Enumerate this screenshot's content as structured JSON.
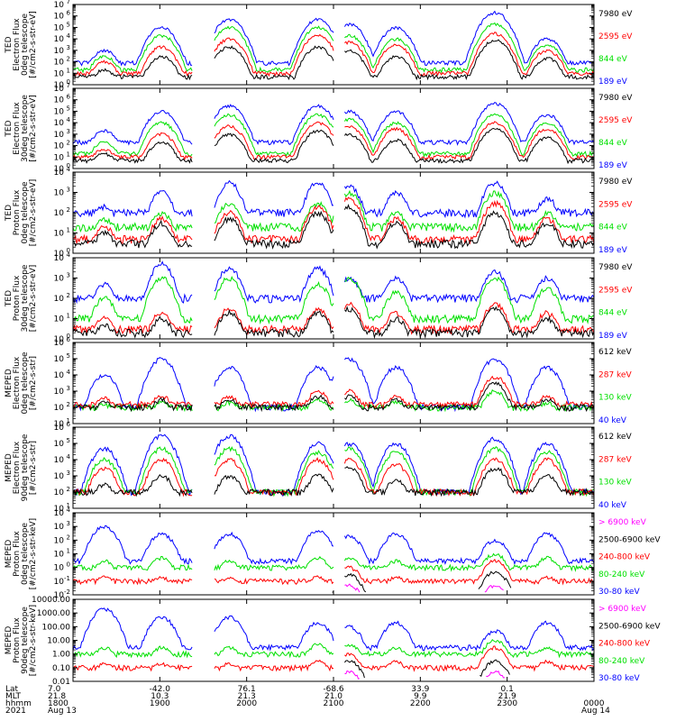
{
  "colors": {
    "black": "#000000",
    "red": "#ff0000",
    "green": "#00e000",
    "blue": "#0000ff",
    "magenta": "#ff00ff"
  },
  "chart_data": [
    {
      "type": "line",
      "ylabel": [
        "TED",
        "Electron Flux",
        "0deg telescope",
        "[#/cm2-s-str-eV]"
      ],
      "log_scale": true,
      "ylim": [
        1,
        10000000
      ],
      "yticks": [
        {
          "label": "10",
          "sup": "0"
        },
        {
          "label": "10",
          "sup": "1"
        },
        {
          "label": "10",
          "sup": "2"
        },
        {
          "label": "10",
          "sup": "3"
        },
        {
          "label": "10",
          "sup": "4"
        },
        {
          "label": "10",
          "sup": "5"
        },
        {
          "label": "10",
          "sup": "6"
        },
        {
          "label": "10",
          "sup": "7"
        }
      ],
      "series": [
        {
          "name": "7980 eV",
          "color": "#000000",
          "base": 5,
          "peaks": [
            20,
            300,
            2000,
            2000,
            1000,
            300,
            8000,
            200
          ]
        },
        {
          "name": "2595 eV",
          "color": "#ff0000",
          "base": 10,
          "peaks": [
            100,
            2000,
            10000,
            20000,
            5000,
            3000,
            30000,
            1000
          ]
        },
        {
          "name": "844 eV",
          "color": "#00e000",
          "base": 20,
          "peaks": [
            300,
            20000,
            100000,
            100000,
            20000,
            10000,
            200000,
            3000
          ]
        },
        {
          "name": "189 eV",
          "color": "#0000ff",
          "base": 80,
          "peaks": [
            1000,
            100000,
            500000,
            500000,
            200000,
            100000,
            2000000,
            10000
          ]
        }
      ]
    },
    {
      "type": "line",
      "ylabel": [
        "TED",
        "Electron Flux",
        "30deg telescope",
        "[#/cm2-s-str-eV]"
      ],
      "log_scale": true,
      "ylim": [
        1,
        10000000
      ],
      "yticks": [
        {
          "label": "10",
          "sup": "0"
        },
        {
          "label": "10",
          "sup": "1"
        },
        {
          "label": "10",
          "sup": "2"
        },
        {
          "label": "10",
          "sup": "3"
        },
        {
          "label": "10",
          "sup": "4"
        },
        {
          "label": "10",
          "sup": "5"
        },
        {
          "label": "10",
          "sup": "6"
        },
        {
          "label": "10",
          "sup": "7"
        }
      ],
      "series": [
        {
          "name": "7980 eV",
          "color": "#000000",
          "base": 5,
          "peaks": [
            20,
            200,
            1000,
            2000,
            1000,
            300,
            3000,
            500
          ]
        },
        {
          "name": "2595 eV",
          "color": "#ff0000",
          "base": 10,
          "peaks": [
            50,
            1000,
            5000,
            10000,
            5000,
            3000,
            10000,
            3000
          ]
        },
        {
          "name": "844 eV",
          "color": "#00e000",
          "base": 20,
          "peaks": [
            200,
            10000,
            50000,
            50000,
            20000,
            10000,
            50000,
            10000
          ]
        },
        {
          "name": "189 eV",
          "color": "#0000ff",
          "base": 200,
          "peaks": [
            2000,
            100000,
            300000,
            300000,
            100000,
            100000,
            500000,
            50000
          ]
        }
      ]
    },
    {
      "type": "line",
      "ylabel": [
        "TED",
        "Proton Flux",
        "0deg telescope",
        "[#/cm2-s-str-eV]"
      ],
      "log_scale": true,
      "ylim": [
        1,
        10000
      ],
      "yticks": [
        {
          "label": "10",
          "sup": "0"
        },
        {
          "label": "10",
          "sup": "1"
        },
        {
          "label": "10",
          "sup": "2"
        },
        {
          "label": "10",
          "sup": "3"
        },
        {
          "label": "10",
          "sup": "4"
        }
      ],
      "series": [
        {
          "name": "7980 eV",
          "color": "#000000",
          "base": 3,
          "peaks": [
            10,
            30,
            50,
            100,
            200,
            30,
            100,
            30
          ]
        },
        {
          "name": "2595 eV",
          "color": "#ff0000",
          "base": 5,
          "peaks": [
            20,
            50,
            100,
            200,
            500,
            50,
            300,
            50
          ]
        },
        {
          "name": "844 eV",
          "color": "#00e000",
          "base": 20,
          "peaks": [
            50,
            100,
            300,
            300,
            1000,
            100,
            1000,
            100
          ]
        },
        {
          "name": "189 eV",
          "color": "#0000ff",
          "base": 100,
          "peaks": [
            200,
            1000,
            3000,
            3000,
            2000,
            1000,
            3000,
            500
          ]
        }
      ]
    },
    {
      "type": "line",
      "ylabel": [
        "TED",
        "Proton Flux",
        "30deg telescope",
        "[#/cm2-s-str-eV]"
      ],
      "log_scale": true,
      "ylim": [
        1,
        10000
      ],
      "yticks": [
        {
          "label": "10",
          "sup": "0"
        },
        {
          "label": "10",
          "sup": "1"
        },
        {
          "label": "10",
          "sup": "2"
        },
        {
          "label": "10",
          "sup": "3"
        },
        {
          "label": "10",
          "sup": "4"
        }
      ],
      "series": [
        {
          "name": "7980 eV",
          "color": "#000000",
          "base": 2,
          "peaks": [
            5,
            10,
            20,
            20,
            30,
            10,
            30,
            10
          ]
        },
        {
          "name": "2595 eV",
          "color": "#ff0000",
          "base": 3,
          "peaks": [
            10,
            20,
            30,
            30,
            50,
            20,
            50,
            20
          ]
        },
        {
          "name": "844 eV",
          "color": "#00e000",
          "base": 10,
          "peaks": [
            100,
            1000,
            1000,
            500,
            1000,
            200,
            1000,
            300
          ]
        },
        {
          "name": "189 eV",
          "color": "#0000ff",
          "base": 100,
          "peaks": [
            500,
            5000,
            3000,
            3000,
            1000,
            1000,
            2000,
            1000
          ]
        }
      ]
    },
    {
      "type": "line",
      "ylabel": [
        "MEPED",
        "Electron Flux",
        "0deg telescope",
        "[#/cm2-s-str]"
      ],
      "log_scale": true,
      "ylim": [
        10,
        1000000
      ],
      "yticks": [
        {
          "label": "10",
          "sup": "1"
        },
        {
          "label": "10",
          "sup": "2"
        },
        {
          "label": "10",
          "sup": "3"
        },
        {
          "label": "10",
          "sup": "4"
        },
        {
          "label": "10",
          "sup": "5"
        },
        {
          "label": "10",
          "sup": "6"
        }
      ],
      "series": [
        {
          "name": "612 keV",
          "color": "#000000",
          "base": 100,
          "peaks": [
            200,
            300,
            300,
            500,
            500,
            300,
            3000,
            300
          ]
        },
        {
          "name": "287 keV",
          "color": "#ff0000",
          "base": 150,
          "peaks": [
            400,
            500,
            500,
            1000,
            1000,
            500,
            8000,
            500
          ]
        },
        {
          "name": "130 keV",
          "color": "#00e000",
          "base": 100,
          "peaks": [
            150,
            200,
            200,
            300,
            300,
            200,
            1000,
            200
          ]
        },
        {
          "name": "40 keV",
          "color": "#0000ff",
          "base": 100,
          "peaks": [
            10000,
            100000,
            30000,
            30000,
            100000,
            30000,
            100000,
            30000
          ]
        }
      ]
    },
    {
      "type": "line",
      "ylabel": [
        "MEPED",
        "Electron Flux",
        "90deg telescope",
        "[#/cm2-s-str]"
      ],
      "log_scale": true,
      "ylim": [
        10,
        1000000
      ],
      "yticks": [
        {
          "label": "10",
          "sup": "1"
        },
        {
          "label": "10",
          "sup": "2"
        },
        {
          "label": "10",
          "sup": "3"
        },
        {
          "label": "10",
          "sup": "4"
        },
        {
          "label": "10",
          "sup": "5"
        },
        {
          "label": "10",
          "sup": "6"
        }
      ],
      "series": [
        {
          "name": "612 keV",
          "color": "#000000",
          "base": 100,
          "peaks": [
            300,
            1000,
            1000,
            1000,
            3000,
            500,
            3000,
            1000
          ]
        },
        {
          "name": "287 keV",
          "color": "#ff0000",
          "base": 100,
          "peaks": [
            3000,
            10000,
            10000,
            10000,
            10000,
            5000,
            10000,
            10000
          ]
        },
        {
          "name": "130 keV",
          "color": "#00e000",
          "base": 100,
          "peaks": [
            10000,
            50000,
            50000,
            30000,
            50000,
            30000,
            50000,
            30000
          ]
        },
        {
          "name": "40 keV",
          "color": "#0000ff",
          "base": 100,
          "peaks": [
            50000,
            300000,
            300000,
            100000,
            100000,
            100000,
            200000,
            100000
          ]
        }
      ]
    },
    {
      "type": "line",
      "ylabel": [
        "MEPED",
        "Proton Flux",
        "0deg telescope",
        "[#/cm2-s-str-keV]"
      ],
      "log_scale": true,
      "ylim": [
        0.01,
        10000
      ],
      "yticks": [
        {
          "label": "10",
          "sup": "-2"
        },
        {
          "label": "10",
          "sup": "-1"
        },
        {
          "label": "10",
          "sup": "0"
        },
        {
          "label": "10",
          "sup": "1"
        },
        {
          "label": "10",
          "sup": "2"
        },
        {
          "label": "10",
          "sup": "3"
        },
        {
          "label": "10",
          "sup": "4"
        }
      ],
      "series": [
        {
          "name": "> 6900 keV",
          "color": "#ff00ff",
          "base": 0,
          "peaks": [
            0,
            0,
            0,
            0,
            0.05,
            0,
            0.05,
            0
          ]
        },
        {
          "name": "2500-6900 keV",
          "color": "#000000",
          "base": 0,
          "peaks": [
            0,
            0,
            0,
            0,
            0.3,
            0,
            0.5,
            0
          ]
        },
        {
          "name": "240-800 keV",
          "color": "#ff0000",
          "base": 0.1,
          "peaks": [
            0.2,
            0.2,
            0.2,
            0.2,
            1,
            0.2,
            3,
            0.2
          ]
        },
        {
          "name": "80-240 keV",
          "color": "#00e000",
          "base": 1,
          "peaks": [
            3,
            5,
            3,
            5,
            5,
            3,
            10,
            5
          ]
        },
        {
          "name": "30-80 keV",
          "color": "#0000ff",
          "base": 3,
          "peaks": [
            1000,
            300,
            300,
            500,
            200,
            300,
            100,
            300
          ]
        }
      ]
    },
    {
      "type": "line",
      "ylabel": [
        "MEPED",
        "Proton Flux",
        "90deg telescope",
        "[#/cm2-s-str-keV]"
      ],
      "log_scale": true,
      "ylim": [
        0.01,
        10000
      ],
      "yticks": [
        {
          "label": "0.01"
        },
        {
          "label": "0.10"
        },
        {
          "label": "1.00"
        },
        {
          "label": "10.00"
        },
        {
          "label": "100.00"
        },
        {
          "label": "1000.00"
        },
        {
          "label": "10000.00"
        }
      ],
      "series": [
        {
          "name": "> 6900 keV",
          "color": "#ff00ff",
          "base": 0,
          "peaks": [
            0,
            0,
            0,
            0,
            0.05,
            0,
            0.05,
            0
          ]
        },
        {
          "name": "2500-6900 keV",
          "color": "#000000",
          "base": 0,
          "peaks": [
            0,
            0,
            0,
            0,
            0.3,
            0,
            0.3,
            0
          ]
        },
        {
          "name": "240-800 keV",
          "color": "#ff0000",
          "base": 0.1,
          "peaks": [
            0.2,
            0.2,
            0.2,
            0.3,
            1,
            0.3,
            3,
            0.3
          ]
        },
        {
          "name": "80-240 keV",
          "color": "#00e000",
          "base": 1,
          "peaks": [
            3,
            3,
            3,
            5,
            5,
            3,
            10,
            3
          ]
        },
        {
          "name": "30-80 keV",
          "color": "#0000ff",
          "base": 3,
          "peaks": [
            2000,
            500,
            500,
            200,
            100,
            200,
            50,
            200
          ]
        }
      ]
    }
  ],
  "x_axis": {
    "row_labels": [
      "Lat",
      "MLT",
      "hhmm",
      "2021"
    ],
    "ticks": [
      {
        "hhmm": "1800",
        "lat": "7.0",
        "mlt": "21.8",
        "date": "Aug 13"
      },
      {
        "hhmm": "1900",
        "lat": "-42.0",
        "mlt": "10.3",
        "date": ""
      },
      {
        "hhmm": "2000",
        "lat": "76.1",
        "mlt": "21.3",
        "date": ""
      },
      {
        "hhmm": "2100",
        "lat": "-68.6",
        "mlt": "21.0",
        "date": ""
      },
      {
        "hhmm": "2200",
        "lat": "33.9",
        "mlt": "9.9",
        "date": ""
      },
      {
        "hhmm": "2300",
        "lat": "0.1",
        "mlt": "21.9",
        "date": ""
      },
      {
        "hhmm": "0000",
        "lat": "",
        "mlt": "",
        "date": "Aug 14"
      }
    ]
  }
}
